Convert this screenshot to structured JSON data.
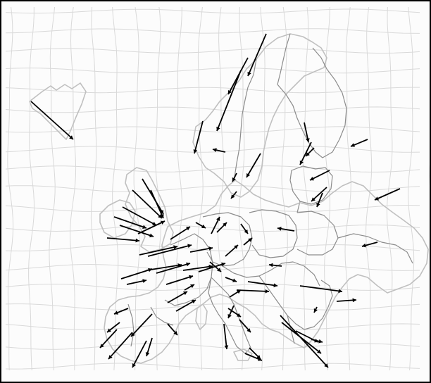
{
  "map": {
    "colors": {
      "frame": "#000000",
      "background": "#fcfcfc",
      "grid": "#d9d9d9",
      "coastline": "#c0c0c0",
      "borders": "#8c8c8c",
      "vectors": "#000000"
    }
  }
}
